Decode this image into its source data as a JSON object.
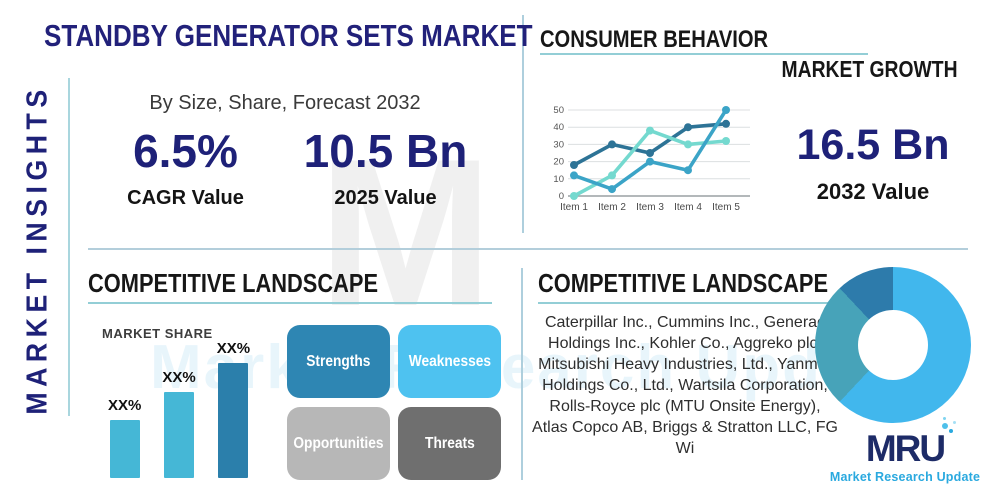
{
  "left_rail": {
    "label": "MARKET INSIGHTS"
  },
  "header": {
    "title": "STANDBY GENERATOR SETS MARKET",
    "subtitle": "By Size, Share, Forecast 2032"
  },
  "stats": {
    "cagr": {
      "value": "6.5%",
      "label": "CAGR Value"
    },
    "y2025": {
      "value": "10.5 Bn",
      "label": "2025 Value"
    },
    "y2032": {
      "value": "16.5 Bn",
      "label": "2032 Value"
    }
  },
  "sections": {
    "consumer_behavior": "CONSUMER BEHAVIOR",
    "market_growth": "MARKET GROWTH",
    "competitive_left": "COMPETITIVE LANDSCAPE",
    "competitive_right": "COMPETITIVE LANDSCAPE",
    "market_share": "MARKET SHARE"
  },
  "swot": [
    {
      "label": "Strengths",
      "color": "#2e86b3"
    },
    {
      "label": "Weaknesses",
      "color": "#4ec2f0"
    },
    {
      "label": "Opportunities",
      "color": "#b7b7b7"
    },
    {
      "label": "Threats",
      "color": "#6f6f6f"
    }
  ],
  "companies": "Caterpillar Inc., Cummins Inc., Generac Holdings Inc., Kohler Co., Aggreko plc, Mitsubishi Heavy Industries, Ltd., Yanmar Holdings Co., Ltd., Wartsila Corporation, Rolls-Royce plc (MTU Onsite Energy), Atlas Copco AB, Briggs & Stratton LLC, FG Wi",
  "logo": {
    "monogram": "MRU",
    "tagline": "Market Research Update"
  },
  "watermark": {
    "letter": "M",
    "text": "Market Research Update"
  },
  "colors": {
    "navy": "#1e2178",
    "heading": "#171717",
    "underline_teal": "#93ced6",
    "divider": "#b3cedb"
  },
  "chart_data": [
    {
      "id": "market-growth-line",
      "type": "line",
      "x": [
        "Item 1",
        "Item 2",
        "Item 3",
        "Item 4",
        "Item 5"
      ],
      "series": [
        {
          "name": "dark-blue",
          "color": "#2d7396",
          "values": [
            18,
            30,
            25,
            40,
            42
          ]
        },
        {
          "name": "light-turquoise",
          "color": "#74d9cf",
          "values": [
            0,
            12,
            38,
            30,
            32
          ]
        },
        {
          "name": "medium-cyan",
          "color": "#3ba4c7",
          "values": [
            12,
            4,
            20,
            15,
            50
          ]
        }
      ],
      "ylim": [
        0,
        50
      ],
      "yticks": [
        0,
        10,
        20,
        30,
        40,
        50
      ],
      "grid": true,
      "legend": "none"
    },
    {
      "id": "market-share-bars",
      "type": "bar",
      "categories": [
        "XX%",
        "XX%",
        "XX%"
      ],
      "values": [
        38,
        56,
        75
      ],
      "colors": [
        "#45b7d6",
        "#45b7d6",
        "#2b7fab"
      ],
      "title": "MARKET SHARE",
      "ylim": [
        0,
        100
      ]
    },
    {
      "id": "company-share-donut",
      "type": "pie",
      "labels": [
        "segment-light-blue",
        "segment-teal",
        "segment-dark-blue"
      ],
      "values": [
        62,
        26,
        12
      ],
      "colors": [
        "#41b7ed",
        "#47a3b9",
        "#2d7bab"
      ]
    }
  ]
}
